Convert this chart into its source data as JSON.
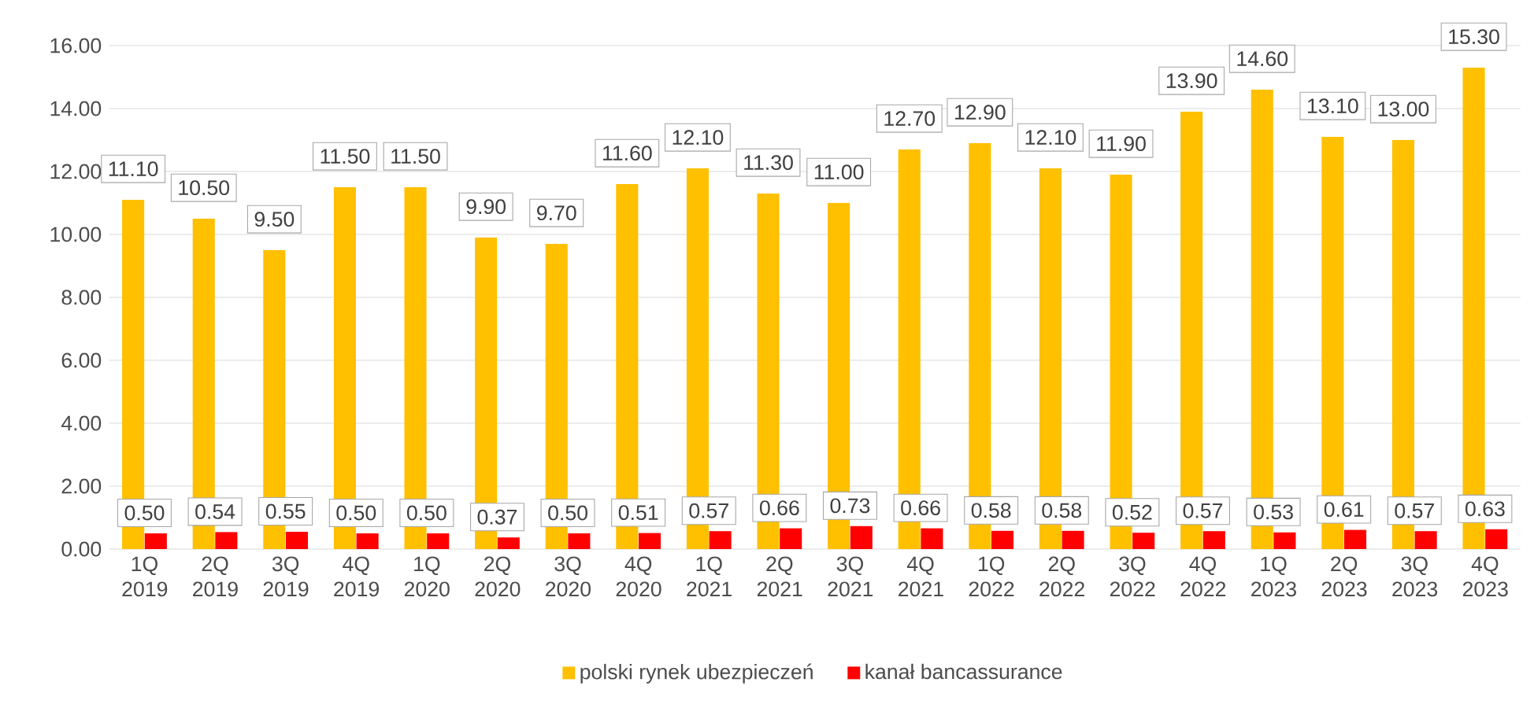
{
  "chart_data": {
    "type": "bar",
    "categories": [
      "1Q 2019",
      "2Q 2019",
      "3Q 2019",
      "4Q 2019",
      "1Q 2020",
      "2Q 2020",
      "3Q 2020",
      "4Q 2020",
      "1Q 2021",
      "2Q 2021",
      "3Q 2021",
      "4Q 2021",
      "1Q 2022",
      "2Q 2022",
      "3Q 2022",
      "4Q 2022",
      "1Q 2023",
      "2Q 2023",
      "3Q 2023",
      "4Q 2023"
    ],
    "series": [
      {
        "name": "polski rynek ubezpieczeń",
        "color": "#ffc000",
        "values": [
          11.1,
          10.5,
          9.5,
          11.5,
          11.5,
          9.9,
          9.7,
          11.6,
          12.1,
          11.3,
          11.0,
          12.7,
          12.9,
          12.1,
          11.9,
          13.9,
          14.6,
          13.1,
          13.0,
          15.3
        ],
        "value_labels": [
          "11.10",
          "10.50",
          "9.50",
          "11.50",
          "11.50",
          "9.90",
          "9.70",
          "11.60",
          "12.10",
          "11.30",
          "11.00",
          "12.70",
          "12.90",
          "12.10",
          "11.90",
          "13.90",
          "14.60",
          "13.10",
          "13.00",
          "15.30"
        ]
      },
      {
        "name": "kanał bancassurance",
        "color": "#ff0000",
        "values": [
          0.5,
          0.54,
          0.55,
          0.5,
          0.5,
          0.37,
          0.5,
          0.51,
          0.57,
          0.66,
          0.73,
          0.66,
          0.58,
          0.58,
          0.52,
          0.57,
          0.53,
          0.61,
          0.57,
          0.63
        ],
        "value_labels": [
          "0.50",
          "0.54",
          "0.55",
          "0.50",
          "0.50",
          "0.37",
          "0.50",
          "0.51",
          "0.57",
          "0.66",
          "0.73",
          "0.66",
          "0.58",
          "0.58",
          "0.52",
          "0.57",
          "0.53",
          "0.61",
          "0.57",
          "0.63"
        ]
      }
    ],
    "ylim": [
      0,
      16.8
    ],
    "yticks": [
      {
        "value": 0,
        "label": "0.00"
      },
      {
        "value": 2,
        "label": "2.00"
      },
      {
        "value": 4,
        "label": "4.00"
      },
      {
        "value": 6,
        "label": "6.00"
      },
      {
        "value": 8,
        "label": "8.00"
      },
      {
        "value": 10,
        "label": "10.00"
      },
      {
        "value": 12,
        "label": "12.00"
      },
      {
        "value": 14,
        "label": "14.00"
      },
      {
        "value": 16,
        "label": "16.00"
      }
    ],
    "grid": "y",
    "legend": "bottom"
  }
}
